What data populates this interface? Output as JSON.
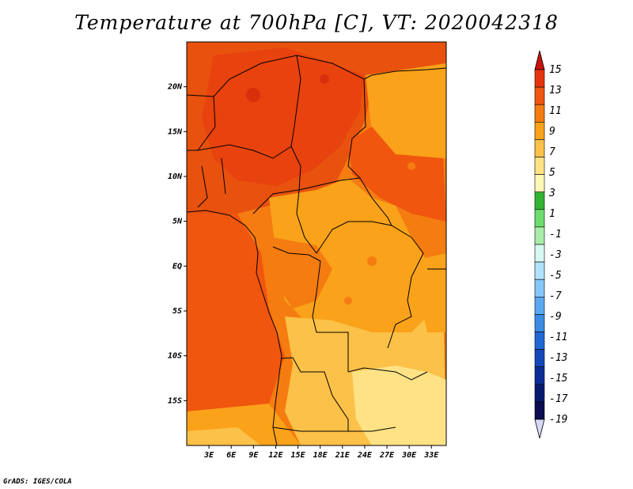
{
  "title": "Temperature at 700hPa [C], VT: 2020042318",
  "credit": "GrADS: IGES/COLA",
  "map": {
    "lon_range": [
      0,
      35
    ],
    "lat_range": [
      -20,
      25
    ],
    "lat_ticks": [
      {
        "value": 20,
        "label": "20N"
      },
      {
        "value": 15,
        "label": "15N"
      },
      {
        "value": 10,
        "label": "10N"
      },
      {
        "value": 5,
        "label": "5N"
      },
      {
        "value": 0,
        "label": "EQ"
      },
      {
        "value": -5,
        "label": "5S"
      },
      {
        "value": -10,
        "label": "10S"
      },
      {
        "value": -15,
        "label": "15S"
      }
    ],
    "lon_ticks": [
      {
        "value": 3,
        "label": "3E"
      },
      {
        "value": 6,
        "label": "6E"
      },
      {
        "value": 9,
        "label": "9E"
      },
      {
        "value": 12,
        "label": "12E"
      },
      {
        "value": 15,
        "label": "15E"
      },
      {
        "value": 18,
        "label": "18E"
      },
      {
        "value": 21,
        "label": "21E"
      },
      {
        "value": 24,
        "label": "24E"
      },
      {
        "value": 27,
        "label": "27E"
      },
      {
        "value": 30,
        "label": "30E"
      },
      {
        "value": 33,
        "label": "33E"
      }
    ]
  },
  "colorbar": {
    "labels": [
      "15",
      "13",
      "11",
      "9",
      "7",
      "5",
      "3",
      "1",
      "-1",
      "-3",
      "-5",
      "-7",
      "-9",
      "-11",
      "-13",
      "-15",
      "-17",
      "-19"
    ],
    "colors": [
      "#e8340e",
      "#f0560e",
      "#f57c10",
      "#f9a21a",
      "#fbc148",
      "#fee285",
      "#fdf8b6",
      "#32b432",
      "#6cdc6c",
      "#a8eca8",
      "#d6f8f0",
      "#b0e2fc",
      "#86c6f8",
      "#5ca8f0",
      "#3a8ce4",
      "#2068d6",
      "#1448b8",
      "#0c2c96",
      "#081a6e",
      "#0c0c50"
    ],
    "top_arrow_color": "#c8140a",
    "bottom_arrow_color": "#d8d8f8"
  },
  "colors": {
    "t13": "#f0560e",
    "t11": "#f57c10",
    "t9": "#f9a21a",
    "t7": "#fbc148",
    "t5": "#fee285",
    "t12": "#e8420e"
  }
}
